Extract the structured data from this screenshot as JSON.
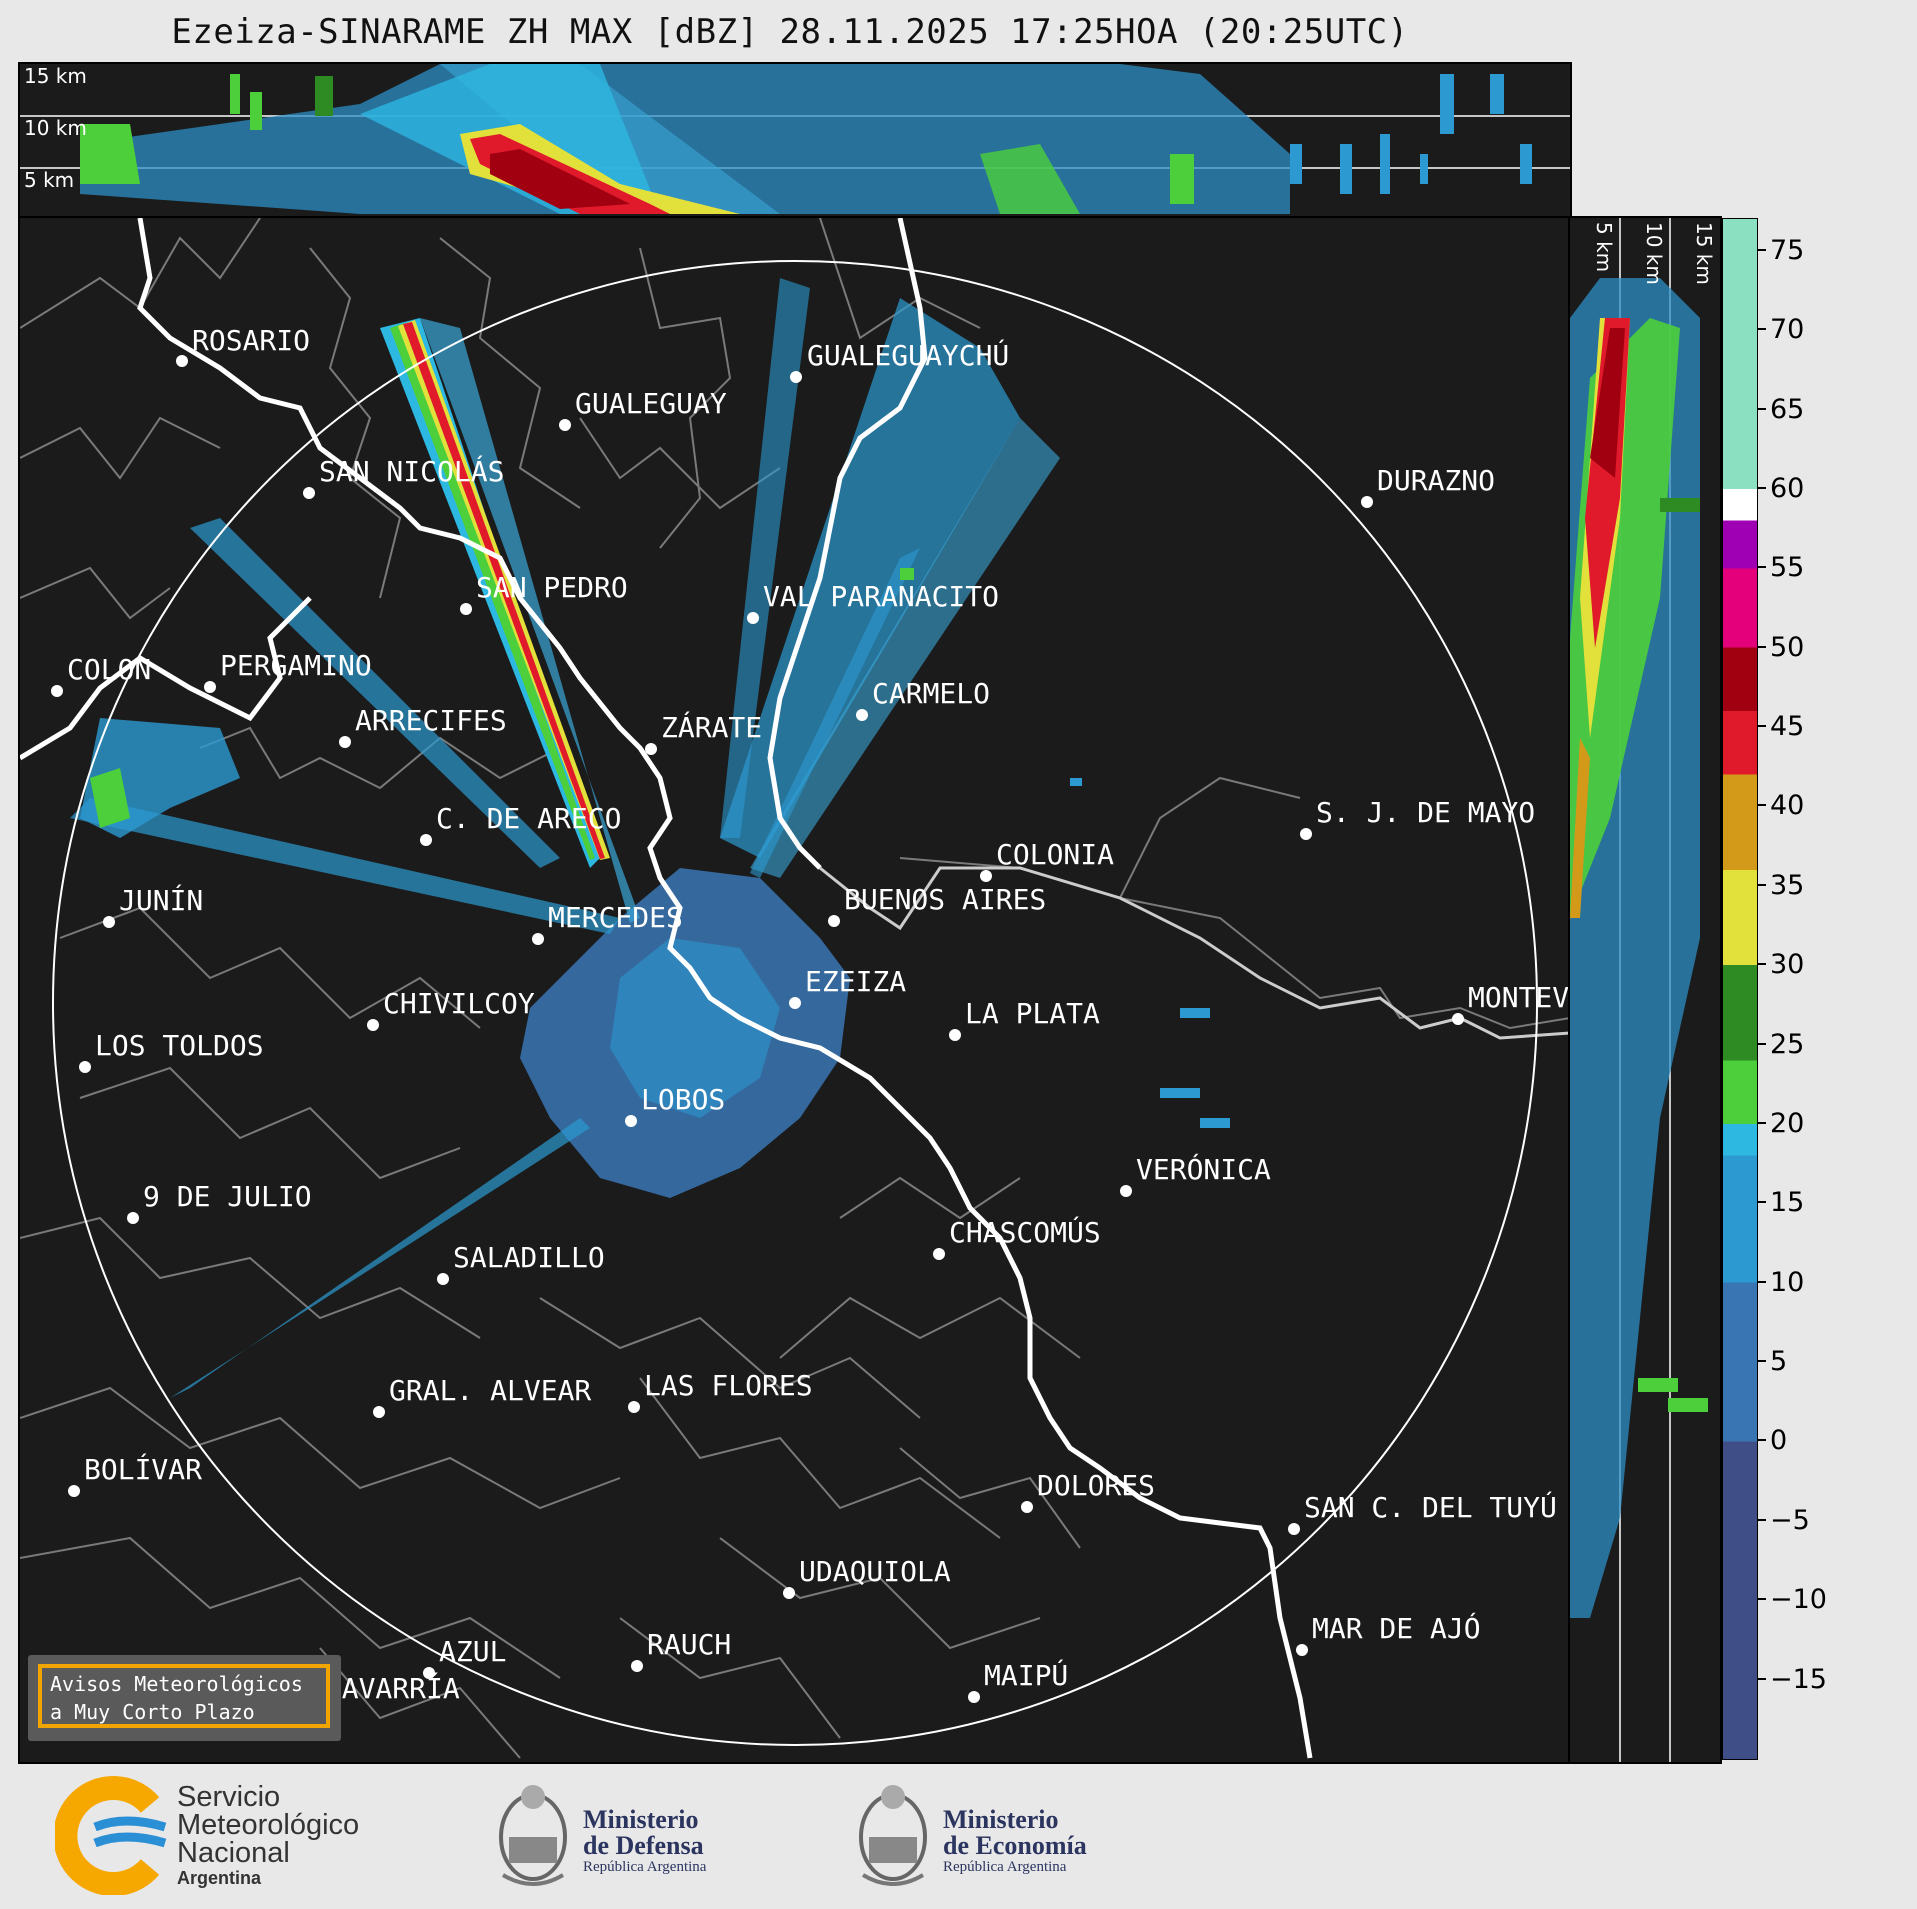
{
  "title": "Ezeiza-SINARAME ZH MAX [dBZ] 28.11.2025 17:25HOA (20:25UTC)",
  "altitude_labels": [
    "15 km",
    "10 km",
    "5 km"
  ],
  "side_altitude_labels": [
    "5 km",
    "10 km",
    "15 km"
  ],
  "colorbar": {
    "unit": "dBZ",
    "ticks": [
      "75",
      "70",
      "65",
      "60",
      "55",
      "50",
      "45",
      "40",
      "35",
      "30",
      "25",
      "20",
      "15",
      "10",
      "5",
      "0",
      "−5",
      "−10",
      "−15"
    ],
    "range": [
      -20,
      77
    ],
    "bands": [
      {
        "from": -20,
        "to": 0,
        "color": "#3f4e86"
      },
      {
        "from": 0,
        "to": 10,
        "color": "#3975b3"
      },
      {
        "from": 10,
        "to": 18,
        "color": "#2c9ad1"
      },
      {
        "from": 18,
        "to": 20,
        "color": "#2db8e2"
      },
      {
        "from": 20,
        "to": 24,
        "color": "#4ccf3b"
      },
      {
        "from": 24,
        "to": 30,
        "color": "#2e8a22"
      },
      {
        "from": 30,
        "to": 36,
        "color": "#e2e03a"
      },
      {
        "from": 36,
        "to": 42,
        "color": "#d39a1a"
      },
      {
        "from": 42,
        "to": 46,
        "color": "#e0192b"
      },
      {
        "from": 46,
        "to": 50,
        "color": "#a00010"
      },
      {
        "from": 50,
        "to": 55,
        "color": "#e3007a"
      },
      {
        "from": 55,
        "to": 58,
        "color": "#a000b4"
      },
      {
        "from": 58,
        "to": 60,
        "color": "#ffffff"
      },
      {
        "from": 60,
        "to": 77,
        "color": "#8ce0c2"
      }
    ]
  },
  "radar": {
    "name": "EZEIZA"
  },
  "cities": [
    {
      "name": "ROSARIO"
    },
    {
      "name": "GUALEGUAYCHÚ"
    },
    {
      "name": "GUALEGUAY"
    },
    {
      "name": "SAN NICOLÁS"
    },
    {
      "name": "DURAZNO"
    },
    {
      "name": "SAN PEDRO"
    },
    {
      "name": "VAL PARANACITO"
    },
    {
      "name": "COLON"
    },
    {
      "name": "PERGAMINO"
    },
    {
      "name": "CARMELO"
    },
    {
      "name": "ARRECIFES"
    },
    {
      "name": "ZÁRATE"
    },
    {
      "name": "S. J. DE MAYO"
    },
    {
      "name": "C. DE ARECO"
    },
    {
      "name": "COLONIA"
    },
    {
      "name": "JUNÍN"
    },
    {
      "name": "BUENOS AIRES"
    },
    {
      "name": "MERCEDES"
    },
    {
      "name": "MONTEVIDEO"
    },
    {
      "name": "EZEIZA"
    },
    {
      "name": "CHIVILCOY"
    },
    {
      "name": "LA PLATA"
    },
    {
      "name": "LOS TOLDOS"
    },
    {
      "name": "LOBOS"
    },
    {
      "name": "VERÓNICA"
    },
    {
      "name": "9 DE JULIO"
    },
    {
      "name": "CHASCOMÚS"
    },
    {
      "name": "SALADILLO"
    },
    {
      "name": "GRAL. ALVEAR"
    },
    {
      "name": "LAS FLORES"
    },
    {
      "name": "BOLÍVAR"
    },
    {
      "name": "DOLORES"
    },
    {
      "name": "SAN C. DEL TUYÚ"
    },
    {
      "name": "UDAQUIOLA"
    },
    {
      "name": "MAR DE AJÓ"
    },
    {
      "name": "AZUL"
    },
    {
      "name": "RAUCH"
    },
    {
      "name": "OLAVARRÍA"
    },
    {
      "name": "MAIPÚ"
    }
  ],
  "warning_box": "Avisos Meteorológicos\na Muy Corto Plazo",
  "logos": {
    "smn": [
      "Servicio",
      "Meteorológico",
      "Nacional",
      "Argentina"
    ],
    "defensa": [
      "Ministerio",
      "de Defensa",
      "República Argentina"
    ],
    "economia": [
      "Ministerio",
      "de Economía",
      "República Argentina"
    ]
  },
  "colors": {
    "background": "#1b1b1b",
    "page": "#e8e8e8",
    "river_border": "#ffffff",
    "admin_lines": "#888888"
  }
}
